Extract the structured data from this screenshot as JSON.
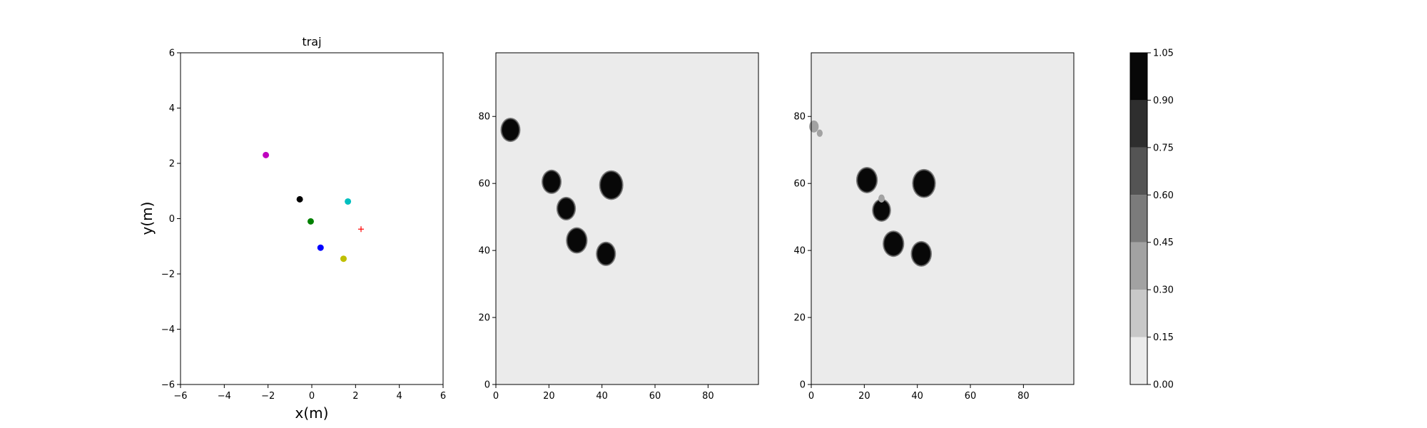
{
  "chart_data": [
    {
      "type": "scatter",
      "title": "traj",
      "xlabel": "x(m)",
      "ylabel": "y(m)",
      "xlim": [
        -6,
        6
      ],
      "ylim": [
        -6,
        6
      ],
      "xticks": [
        -6,
        -4,
        -2,
        0,
        2,
        4,
        6
      ],
      "yticks": [
        -6,
        -4,
        -2,
        0,
        2,
        4,
        6
      ],
      "grid": false,
      "points": [
        {
          "x": -2.1,
          "y": 2.3,
          "color": "#bf00bf",
          "marker": "circle"
        },
        {
          "x": -0.55,
          "y": 0.7,
          "color": "#000000",
          "marker": "circle"
        },
        {
          "x": -0.05,
          "y": -0.1,
          "color": "#008000",
          "marker": "circle"
        },
        {
          "x": 1.65,
          "y": 0.62,
          "color": "#00bfbf",
          "marker": "circle"
        },
        {
          "x": 0.4,
          "y": -1.05,
          "color": "#0000ff",
          "marker": "circle"
        },
        {
          "x": 1.45,
          "y": -1.45,
          "color": "#bfbf00",
          "marker": "circle"
        },
        {
          "x": 2.25,
          "y": -0.38,
          "color": "#ff0000",
          "marker": "plus"
        }
      ]
    },
    {
      "type": "heatmap",
      "xlim": [
        0,
        99
      ],
      "ylim": [
        0,
        99
      ],
      "xticks": [
        0,
        20,
        40,
        60,
        80
      ],
      "yticks": [
        0,
        20,
        40,
        60,
        80
      ],
      "background_level": 0.075,
      "blobs": [
        {
          "cx": 5.5,
          "cy": 76,
          "r": 3.1,
          "level": 1.0
        },
        {
          "cx": 21,
          "cy": 60.5,
          "r": 3.1,
          "level": 1.0
        },
        {
          "cx": 26.5,
          "cy": 52.5,
          "r": 3.0,
          "level": 1.0
        },
        {
          "cx": 30.5,
          "cy": 43,
          "r": 3.4,
          "level": 1.0
        },
        {
          "cx": 43.5,
          "cy": 59.5,
          "r": 3.9,
          "level": 1.0
        },
        {
          "cx": 41.5,
          "cy": 39,
          "r": 3.1,
          "level": 1.0
        }
      ]
    },
    {
      "type": "heatmap",
      "xlim": [
        0,
        99
      ],
      "ylim": [
        0,
        99
      ],
      "xticks": [
        0,
        20,
        40,
        60,
        80
      ],
      "yticks": [
        0,
        20,
        40,
        60,
        80
      ],
      "background_level": 0.075,
      "blobs": [
        {
          "cx": 1,
          "cy": 77,
          "r": 1.8,
          "level": 0.35
        },
        {
          "cx": 3.2,
          "cy": 75,
          "r": 1.1,
          "level": 0.3
        },
        {
          "cx": 21,
          "cy": 61,
          "r": 3.4,
          "level": 1.0
        },
        {
          "cx": 26.5,
          "cy": 52,
          "r": 2.9,
          "level": 1.0
        },
        {
          "cx": 26.5,
          "cy": 55.5,
          "r": 1.2,
          "level": 0.35
        },
        {
          "cx": 31,
          "cy": 42,
          "r": 3.4,
          "level": 1.0
        },
        {
          "cx": 42.5,
          "cy": 60,
          "r": 3.8,
          "level": 1.0
        },
        {
          "cx": 41.5,
          "cy": 39,
          "r": 3.3,
          "level": 1.0
        }
      ]
    }
  ],
  "colorbar": {
    "levels": [
      0.0,
      0.15,
      0.3,
      0.45,
      0.6,
      0.75,
      0.9,
      1.05
    ],
    "tick_labels": [
      "0.00",
      "0.15",
      "0.30",
      "0.45",
      "0.60",
      "0.75",
      "0.90",
      "1.05"
    ],
    "colors": [
      "#ebebeb",
      "#c8c8c8",
      "#a2a2a2",
      "#7b7b7b",
      "#545454",
      "#2e2e2e",
      "#080808"
    ]
  }
}
